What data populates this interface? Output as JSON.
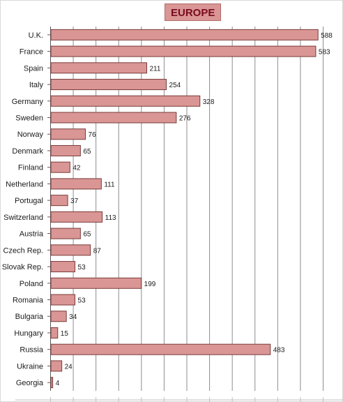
{
  "chart_data": {
    "type": "bar",
    "orientation": "horizontal",
    "title": "EUROPE",
    "categories": [
      "U.K.",
      "France",
      "Spain",
      "Italy",
      "Germany",
      "Sweden",
      "Norway",
      "Denmark",
      "Finland",
      "Netherland",
      "Portugal",
      "Switzerland",
      "Austria",
      "Czech Rep.",
      "Slovak Rep.",
      "Poland",
      "Romania",
      "Bulgaria",
      "Hungary",
      "Russia",
      "Ukraine",
      "Georgia"
    ],
    "values": [
      588,
      583,
      211,
      254,
      328,
      276,
      76,
      65,
      42,
      111,
      37,
      113,
      65,
      87,
      53,
      199,
      53,
      34,
      15,
      483,
      24,
      4
    ],
    "xlim": [
      0,
      600
    ],
    "grid": true,
    "data_labels": true,
    "legend": "none",
    "colors": {
      "bar_fill": "#d99694",
      "bar_stroke": "#7a3b3a",
      "grid": "#8c8c8c",
      "title_bg": "#d99694",
      "title_text": "#7a0b1e"
    }
  }
}
